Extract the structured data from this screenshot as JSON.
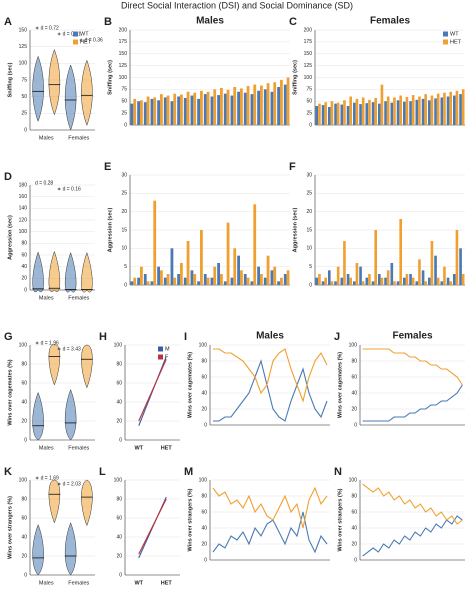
{
  "chart_data": [
    {
      "type": "violin",
      "letter": "A",
      "ylabel": "Sniffing (sec)",
      "categories": [
        "Males",
        "Females"
      ],
      "series": [
        {
          "name": "WT",
          "color": "#4a7ab5",
          "values": [
            58,
            45
          ]
        },
        {
          "name": "HET",
          "color": "#f0a030",
          "values": [
            68,
            52
          ]
        }
      ],
      "ylim": [
        0,
        150
      ],
      "yticks": [
        0,
        25,
        50,
        75,
        100,
        125,
        150
      ],
      "legend": true,
      "annotations": [
        "∗ d = 0.72",
        "∗ d = 0.41",
        "∗ d = 0.36"
      ]
    },
    {
      "type": "bar",
      "letter": "B",
      "title": "Males",
      "ylabel": "Sniffing (sec)",
      "series": [
        {
          "name": "WT",
          "color": "#4a7ab5",
          "values": [
            45,
            50,
            48,
            55,
            52,
            58,
            50,
            60,
            57,
            62,
            55,
            65,
            60,
            63,
            66,
            62,
            70,
            68,
            65,
            72,
            75,
            70,
            80,
            85
          ]
        },
        {
          "name": "HET",
          "color": "#f0a030",
          "values": [
            55,
            52,
            60,
            58,
            65,
            62,
            66,
            64,
            70,
            68,
            72,
            70,
            75,
            78,
            74,
            80,
            77,
            82,
            85,
            83,
            88,
            90,
            95,
            100
          ]
        }
      ],
      "ylim": [
        0,
        200
      ],
      "yticks": [
        0,
        25,
        50,
        75,
        100,
        125,
        150,
        175,
        200
      ]
    },
    {
      "type": "bar",
      "letter": "C",
      "title": "Females",
      "ylabel": "Sniffing (sec)",
      "series": [
        {
          "name": "WT",
          "color": "#4a7ab5",
          "values": [
            40,
            42,
            38,
            45,
            43,
            40,
            47,
            44,
            46,
            48,
            45,
            50,
            47,
            52,
            49,
            50,
            53,
            55,
            52,
            56,
            58,
            60,
            62,
            65
          ]
        },
        {
          "name": "HET",
          "color": "#f0a030",
          "values": [
            45,
            48,
            50,
            47,
            52,
            60,
            55,
            58,
            53,
            57,
            85,
            60,
            58,
            62,
            59,
            63,
            60,
            65,
            62,
            66,
            68,
            70,
            72,
            75
          ]
        }
      ],
      "ylim": [
        0,
        200
      ],
      "yticks": [
        0,
        25,
        50,
        75,
        100,
        125,
        150,
        175,
        200
      ],
      "legend": true
    },
    {
      "type": "violin",
      "letter": "D",
      "ylabel": "Aggression (sec)",
      "categories": [
        "Males",
        "Females"
      ],
      "series": [
        {
          "name": "WT",
          "color": "#4a7ab5",
          "values": [
            2,
            1
          ]
        },
        {
          "name": "HET",
          "color": "#f0a030",
          "values": [
            3,
            1
          ]
        }
      ],
      "ylim": [
        0,
        180
      ],
      "yticks": [
        0,
        20,
        40,
        60,
        80,
        100,
        120,
        140,
        160,
        180
      ],
      "annotations": [
        "d = 0.28",
        "∗ d = 0.16"
      ]
    },
    {
      "type": "bar",
      "letter": "E",
      "ylabel": "Aggression (sec)",
      "series": [
        {
          "name": "WT",
          "color": "#4a7ab5",
          "values": [
            1,
            2,
            3,
            1,
            5,
            2,
            10,
            3,
            2,
            4,
            1,
            3,
            2,
            6,
            1,
            2,
            8,
            3,
            1,
            5,
            2,
            4,
            1,
            3
          ]
        },
        {
          "name": "HET",
          "color": "#f0a030",
          "values": [
            2,
            5,
            1,
            23,
            4,
            3,
            2,
            6,
            12,
            3,
            15,
            2,
            5,
            3,
            17,
            10,
            4,
            2,
            22,
            3,
            8,
            5,
            2,
            4
          ]
        }
      ],
      "ylim": [
        0,
        30
      ],
      "yticks": [
        0,
        5,
        10,
        15,
        20,
        25,
        30
      ]
    },
    {
      "type": "bar",
      "letter": "F",
      "ylabel": "Aggression (sec)",
      "series": [
        {
          "name": "WT",
          "color": "#4a7ab5",
          "values": [
            2,
            1,
            4,
            1,
            2,
            3,
            1,
            5,
            2,
            1,
            3,
            2,
            6,
            1,
            2,
            3,
            1,
            4,
            2,
            8,
            1,
            2,
            3,
            10
          ]
        },
        {
          "name": "HET",
          "color": "#f0a030",
          "values": [
            3,
            2,
            1,
            5,
            12,
            2,
            6,
            1,
            3,
            15,
            2,
            4,
            1,
            18,
            3,
            2,
            7,
            1,
            12,
            2,
            5,
            1,
            15,
            3
          ]
        }
      ],
      "ylim": [
        0,
        30
      ],
      "yticks": [
        0,
        5,
        10,
        15,
        20,
        25,
        30
      ]
    },
    {
      "type": "violin",
      "letter": "G",
      "ylabel": "Wins over cagemates (%)",
      "categories": [
        "Males",
        "Females"
      ],
      "series": [
        {
          "name": "WT",
          "color": "#4a7ab5",
          "values": [
            15,
            18
          ]
        },
        {
          "name": "HET",
          "color": "#f0a030",
          "values": [
            88,
            85
          ]
        }
      ],
      "ylim": [
        0,
        100
      ],
      "yticks": [
        0,
        20,
        40,
        60,
        80,
        100
      ],
      "annotations": [
        "∗ d = 1.96",
        "∗ d = 3.43"
      ]
    },
    {
      "type": "line",
      "letter": "H",
      "categories": [
        "WT",
        "HET"
      ],
      "series": [
        {
          "name": "M",
          "color": "#3a5fa0",
          "values": [
            15,
            88
          ]
        },
        {
          "name": "F",
          "color": "#c0303a",
          "values": [
            20,
            85
          ]
        }
      ],
      "ylim": [
        0,
        100
      ],
      "yticks": [
        0,
        20,
        40,
        60,
        80,
        100
      ],
      "legend": true
    },
    {
      "type": "line",
      "letter": "I",
      "title": "Males",
      "ylabel": "Wins over cagemates (%)",
      "series": [
        {
          "name": "WT",
          "color": "#4a7ab5",
          "values": [
            5,
            5,
            10,
            10,
            20,
            30,
            40,
            60,
            80,
            50,
            20,
            10,
            5,
            30,
            50,
            70,
            40,
            20,
            10,
            30
          ]
        },
        {
          "name": "HET",
          "color": "#f0a030",
          "values": [
            95,
            95,
            90,
            90,
            85,
            80,
            70,
            60,
            40,
            50,
            80,
            90,
            95,
            70,
            50,
            30,
            60,
            80,
            90,
            75
          ]
        }
      ],
      "ylim": [
        0,
        100
      ],
      "yticks": [
        0,
        20,
        40,
        60,
        80,
        100
      ]
    },
    {
      "type": "line",
      "letter": "J",
      "title": "Females",
      "ylabel": "Wins over cagemates (%)",
      "series": [
        {
          "name": "WT",
          "color": "#4a7ab5",
          "values": [
            5,
            5,
            5,
            5,
            5,
            5,
            10,
            10,
            10,
            15,
            15,
            20,
            20,
            25,
            25,
            30,
            30,
            35,
            40,
            50
          ]
        },
        {
          "name": "HET",
          "color": "#f0a030",
          "values": [
            95,
            95,
            95,
            95,
            95,
            95,
            90,
            90,
            90,
            85,
            85,
            80,
            80,
            75,
            75,
            70,
            70,
            65,
            60,
            50
          ]
        }
      ],
      "ylim": [
        0,
        100
      ],
      "yticks": [
        0,
        20,
        40,
        60,
        80,
        100
      ]
    },
    {
      "type": "violin",
      "letter": "K",
      "ylabel": "Wins over strangers (%)",
      "categories": [
        "Males",
        "Females"
      ],
      "series": [
        {
          "name": "WT",
          "color": "#4a7ab5",
          "values": [
            18,
            20
          ]
        },
        {
          "name": "HET",
          "color": "#f0a030",
          "values": [
            85,
            82
          ]
        }
      ],
      "ylim": [
        0,
        100
      ],
      "yticks": [
        0,
        20,
        40,
        60,
        80,
        100
      ],
      "annotations": [
        "∗ d = 1.69",
        "∗ d = 2.03"
      ]
    },
    {
      "type": "line",
      "letter": "L",
      "categories": [
        "WT",
        "HET"
      ],
      "series": [
        {
          "name": "M",
          "color": "#3a5fa0",
          "values": [
            18,
            82
          ]
        },
        {
          "name": "F",
          "color": "#c0303a",
          "values": [
            22,
            80
          ]
        }
      ],
      "ylim": [
        0,
        100
      ],
      "yticks": [
        0,
        20,
        40,
        60,
        80,
        100
      ]
    },
    {
      "type": "line",
      "letter": "M",
      "ylabel": "Wins over strangers (%)",
      "series": [
        {
          "name": "WT",
          "color": "#4a7ab5",
          "values": [
            10,
            20,
            15,
            30,
            25,
            35,
            20,
            40,
            30,
            45,
            50,
            35,
            20,
            40,
            30,
            60,
            25,
            10,
            30,
            20
          ]
        },
        {
          "name": "HET",
          "color": "#f0a030",
          "values": [
            90,
            80,
            85,
            70,
            75,
            65,
            80,
            60,
            70,
            55,
            50,
            65,
            80,
            60,
            70,
            40,
            75,
            90,
            70,
            80
          ]
        }
      ],
      "ylim": [
        0,
        100
      ],
      "yticks": [
        0,
        20,
        40,
        60,
        80,
        100
      ]
    },
    {
      "type": "line",
      "letter": "N",
      "ylabel": "Wins over strangers (%)",
      "series": [
        {
          "name": "WT",
          "color": "#4a7ab5",
          "values": [
            5,
            10,
            15,
            10,
            20,
            15,
            25,
            20,
            30,
            25,
            35,
            30,
            40,
            35,
            45,
            40,
            50,
            45,
            55,
            50
          ]
        },
        {
          "name": "HET",
          "color": "#f0a030",
          "values": [
            95,
            90,
            85,
            90,
            80,
            85,
            75,
            80,
            70,
            75,
            65,
            70,
            60,
            65,
            55,
            60,
            50,
            55,
            45,
            50
          ]
        }
      ],
      "ylim": [
        0,
        100
      ],
      "yticks": [
        0,
        20,
        40,
        60,
        80,
        100
      ]
    }
  ],
  "figure_title": "Direct Social Interaction (DSI) and Social Dominance (SD)"
}
